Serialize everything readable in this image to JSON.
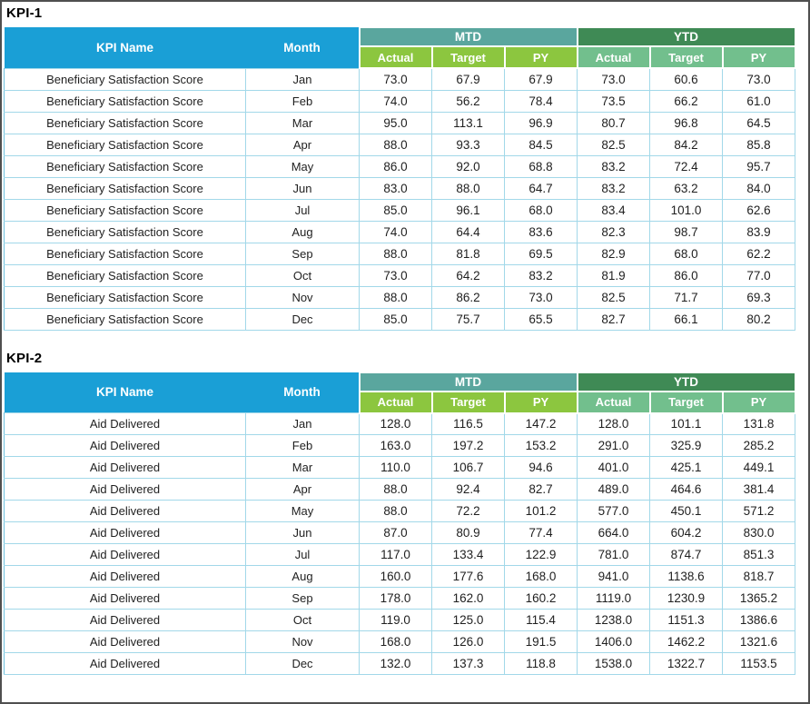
{
  "colors": {
    "header_blue": "#1A9FD6",
    "mtd_banner": "#5AA69E",
    "ytd_banner": "#3F8A55",
    "mtd_sub": "#8CC63F",
    "ytd_sub": "#72BF8D",
    "cell_border": "#A2D8E9",
    "data_text": "#1F1F1F",
    "frame": "#4F4F4F"
  },
  "tables": [
    {
      "title": "KPI-1",
      "headers": {
        "kpi_name": "KPI Name",
        "month": "Month",
        "mtd": "MTD",
        "ytd": "YTD",
        "mtd_sub": [
          "Actual",
          "Target",
          "PY"
        ],
        "ytd_sub": [
          "Actual",
          "Target",
          "PY"
        ]
      },
      "rows": [
        {
          "kpi": "Beneficiary Satisfaction Score",
          "month": "Jan",
          "values": [
            73.0,
            67.9,
            67.9,
            73.0,
            60.6,
            73.0
          ]
        },
        {
          "kpi": "Beneficiary Satisfaction Score",
          "month": "Feb",
          "values": [
            74.0,
            56.2,
            78.4,
            73.5,
            66.2,
            61.0
          ]
        },
        {
          "kpi": "Beneficiary Satisfaction Score",
          "month": "Mar",
          "values": [
            95.0,
            113.1,
            96.9,
            80.7,
            96.8,
            64.5
          ]
        },
        {
          "kpi": "Beneficiary Satisfaction Score",
          "month": "Apr",
          "values": [
            88.0,
            93.3,
            84.5,
            82.5,
            84.2,
            85.8
          ]
        },
        {
          "kpi": "Beneficiary Satisfaction Score",
          "month": "May",
          "values": [
            86.0,
            92.0,
            68.8,
            83.2,
            72.4,
            95.7
          ]
        },
        {
          "kpi": "Beneficiary Satisfaction Score",
          "month": "Jun",
          "values": [
            83.0,
            88.0,
            64.7,
            83.2,
            63.2,
            84.0
          ]
        },
        {
          "kpi": "Beneficiary Satisfaction Score",
          "month": "Jul",
          "values": [
            85.0,
            96.1,
            68.0,
            83.4,
            101.0,
            62.6
          ]
        },
        {
          "kpi": "Beneficiary Satisfaction Score",
          "month": "Aug",
          "values": [
            74.0,
            64.4,
            83.6,
            82.3,
            98.7,
            83.9
          ]
        },
        {
          "kpi": "Beneficiary Satisfaction Score",
          "month": "Sep",
          "values": [
            88.0,
            81.8,
            69.5,
            82.9,
            68.0,
            62.2
          ]
        },
        {
          "kpi": "Beneficiary Satisfaction Score",
          "month": "Oct",
          "values": [
            73.0,
            64.2,
            83.2,
            81.9,
            86.0,
            77.0
          ]
        },
        {
          "kpi": "Beneficiary Satisfaction Score",
          "month": "Nov",
          "values": [
            88.0,
            86.2,
            73.0,
            82.5,
            71.7,
            69.3
          ]
        },
        {
          "kpi": "Beneficiary Satisfaction Score",
          "month": "Dec",
          "values": [
            85.0,
            75.7,
            65.5,
            82.7,
            66.1,
            80.2
          ]
        }
      ]
    },
    {
      "title": "KPI-2",
      "headers": {
        "kpi_name": "KPI Name",
        "month": "Month",
        "mtd": "MTD",
        "ytd": "YTD",
        "mtd_sub": [
          "Actual",
          "Target",
          "PY"
        ],
        "ytd_sub": [
          "Actual",
          "Target",
          "PY"
        ]
      },
      "rows": [
        {
          "kpi": "Aid Delivered",
          "month": "Jan",
          "values": [
            128.0,
            116.5,
            147.2,
            128.0,
            101.1,
            131.8
          ]
        },
        {
          "kpi": "Aid Delivered",
          "month": "Feb",
          "values": [
            163.0,
            197.2,
            153.2,
            291.0,
            325.9,
            285.2
          ]
        },
        {
          "kpi": "Aid Delivered",
          "month": "Mar",
          "values": [
            110.0,
            106.7,
            94.6,
            401.0,
            425.1,
            449.1
          ]
        },
        {
          "kpi": "Aid Delivered",
          "month": "Apr",
          "values": [
            88.0,
            92.4,
            82.7,
            489.0,
            464.6,
            381.4
          ]
        },
        {
          "kpi": "Aid Delivered",
          "month": "May",
          "values": [
            88.0,
            72.2,
            101.2,
            577.0,
            450.1,
            571.2
          ]
        },
        {
          "kpi": "Aid Delivered",
          "month": "Jun",
          "values": [
            87.0,
            80.9,
            77.4,
            664.0,
            604.2,
            830.0
          ]
        },
        {
          "kpi": "Aid Delivered",
          "month": "Jul",
          "values": [
            117.0,
            133.4,
            122.9,
            781.0,
            874.7,
            851.3
          ]
        },
        {
          "kpi": "Aid Delivered",
          "month": "Aug",
          "values": [
            160.0,
            177.6,
            168.0,
            941.0,
            1138.6,
            818.7
          ]
        },
        {
          "kpi": "Aid Delivered",
          "month": "Sep",
          "values": [
            178.0,
            162.0,
            160.2,
            1119.0,
            1230.9,
            1365.2
          ]
        },
        {
          "kpi": "Aid Delivered",
          "month": "Oct",
          "values": [
            119.0,
            125.0,
            115.4,
            1238.0,
            1151.3,
            1386.6
          ]
        },
        {
          "kpi": "Aid Delivered",
          "month": "Nov",
          "values": [
            168.0,
            126.0,
            191.5,
            1406.0,
            1462.2,
            1321.6
          ]
        },
        {
          "kpi": "Aid Delivered",
          "month": "Dec",
          "values": [
            132.0,
            137.3,
            118.8,
            1538.0,
            1322.7,
            1153.5
          ]
        }
      ]
    }
  ]
}
